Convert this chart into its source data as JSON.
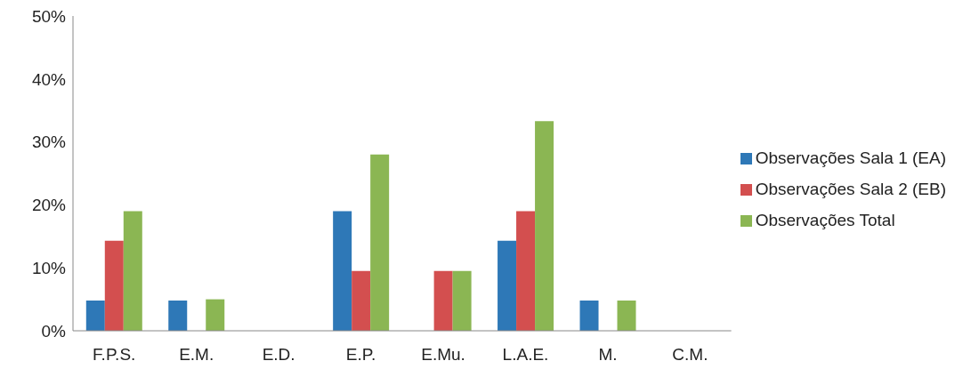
{
  "chart_data": {
    "type": "bar",
    "categories": [
      "F.P.S.",
      "E.M.",
      "E.D.",
      "E.P.",
      "E.Mu.",
      "L.A.E.",
      "M.",
      "C.M."
    ],
    "series": [
      {
        "name": "Observações Sala 1 (EA)",
        "color": "#2e78b7",
        "values": [
          4.8,
          4.8,
          0,
          19.0,
          0,
          14.3,
          4.8,
          0
        ]
      },
      {
        "name": "Observações Sala 2 (EB)",
        "color": "#d34f4f",
        "values": [
          14.3,
          0,
          0,
          9.5,
          9.5,
          19.0,
          0,
          0
        ]
      },
      {
        "name": "Observações Total",
        "color": "#8bb653",
        "values": [
          19.0,
          5.0,
          0,
          28.0,
          9.5,
          33.3,
          4.8,
          0
        ]
      }
    ],
    "ylim": [
      0,
      50
    ],
    "yticks": [
      {
        "value": 0,
        "label": "0%"
      },
      {
        "value": 10,
        "label": "10%"
      },
      {
        "value": 20,
        "label": "20%"
      },
      {
        "value": 30,
        "label": "30%"
      },
      {
        "value": 40,
        "label": "40%"
      },
      {
        "value": 50,
        "label": "50%"
      }
    ],
    "grid": false,
    "legend": "right"
  }
}
